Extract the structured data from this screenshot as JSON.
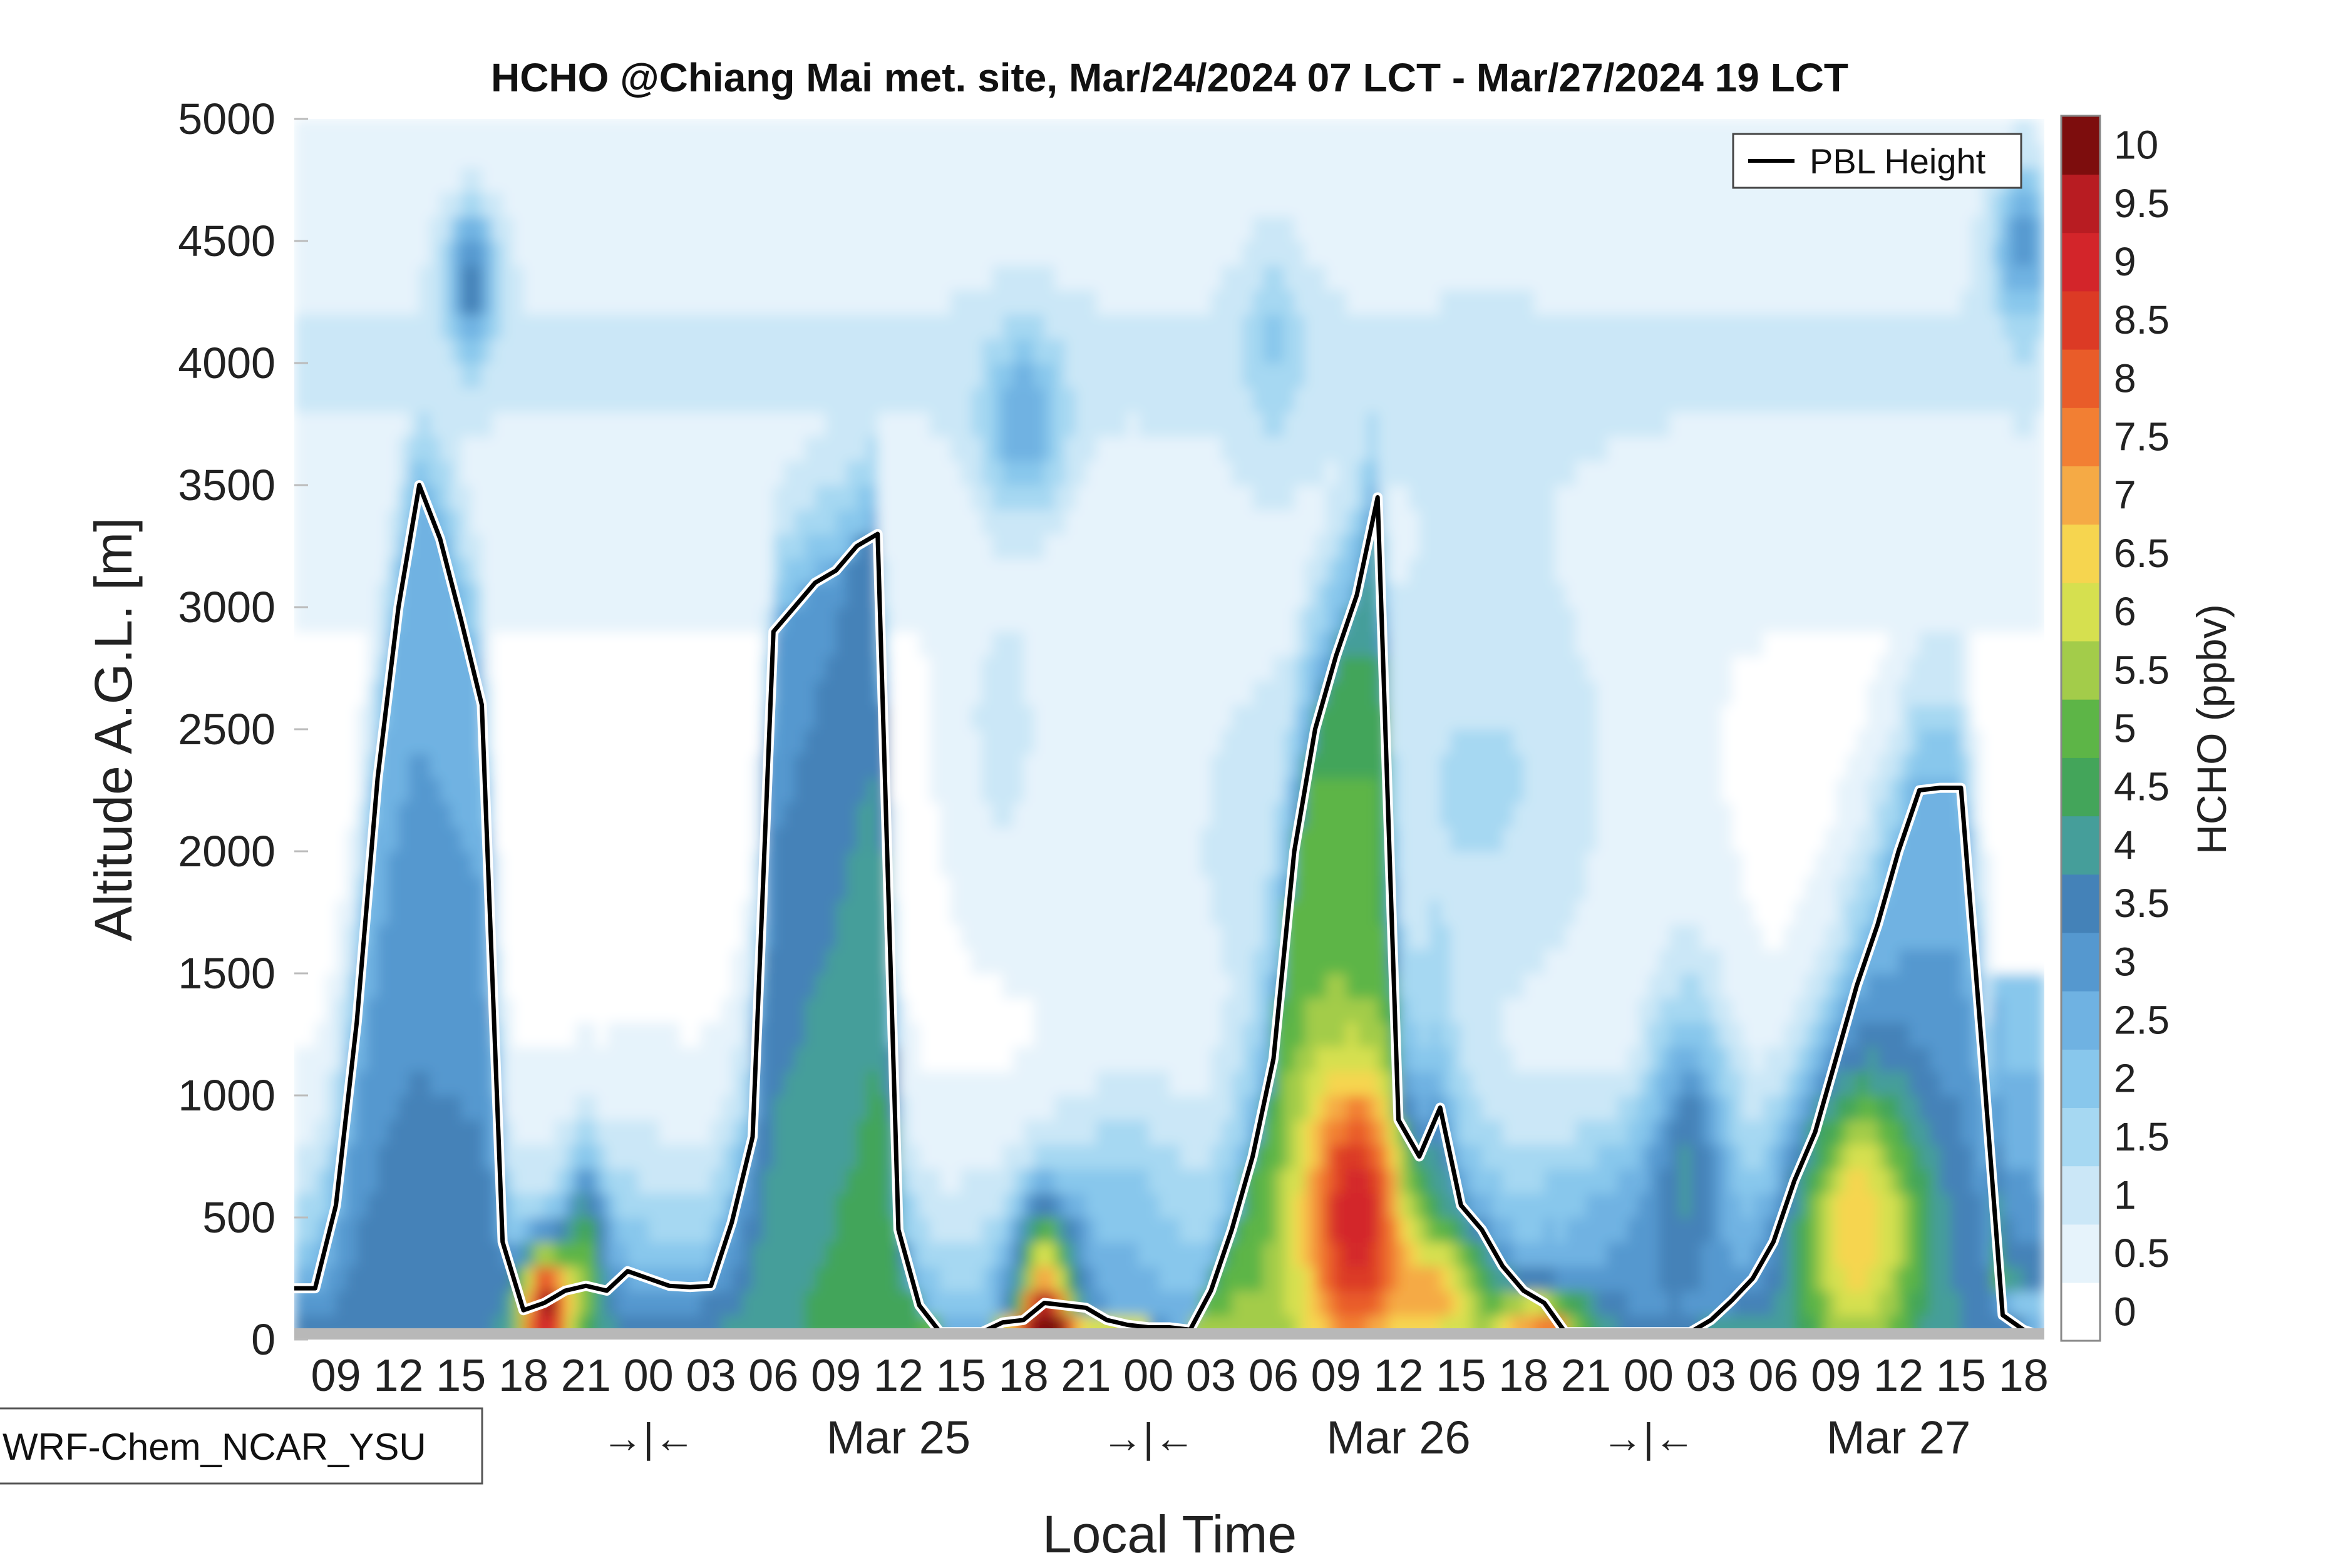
{
  "chart_data": {
    "type": "heatmap",
    "title": "HCHO @Chiang Mai met. site, Mar/24/2024 07 LCT - Mar/27/2024 19 LCT",
    "xlabel": "Local Time",
    "ylabel": "Altitude A.G.L. [m]",
    "colorbar_label": "HCHO (ppbv)",
    "model_label": "WRF-Chem_NCAR_YSU",
    "legend_label": "PBL Height",
    "legend_position": "top-right",
    "xlim_hours": [
      0,
      84
    ],
    "ylim": [
      0,
      5000
    ],
    "y_ticks": [
      0,
      500,
      1000,
      1500,
      2000,
      2500,
      3000,
      3500,
      4000,
      4500,
      5000
    ],
    "x_tick_hours": [
      2,
      5,
      8,
      11,
      14,
      17,
      20,
      23,
      26,
      29,
      32,
      35,
      38,
      41,
      44,
      47,
      50,
      53,
      56,
      59,
      62,
      65,
      68,
      71,
      74,
      77,
      80,
      83
    ],
    "x_tick_labels": [
      "09",
      "12",
      "15",
      "18",
      "21",
      "00",
      "03",
      "06",
      "09",
      "12",
      "15",
      "18",
      "21",
      "00",
      "03",
      "06",
      "09",
      "12",
      "15",
      "18",
      "21",
      "00",
      "03",
      "06",
      "09",
      "12",
      "15",
      "18"
    ],
    "date_labels": [
      {
        "hour": 29,
        "text": "Mar 25"
      },
      {
        "hour": 53,
        "text": "Mar 26"
      },
      {
        "hour": 77,
        "text": "Mar 27"
      }
    ],
    "day_break_labels": [
      {
        "hour": 17,
        "text": "→|←"
      },
      {
        "hour": 41,
        "text": "→|←"
      },
      {
        "hour": 65,
        "text": "→|←"
      }
    ],
    "colorbar_levels": [
      0,
      0.5,
      1,
      1.5,
      2,
      2.5,
      3,
      3.5,
      4,
      4.5,
      5,
      5.5,
      6,
      6.5,
      7,
      7.5,
      8,
      8.5,
      9,
      9.5,
      10
    ],
    "colorbar_tick_labels": [
      "0",
      "0.5",
      "1",
      "1.5",
      "2",
      "2.5",
      "3",
      "3.5",
      "4",
      "4.5",
      "5",
      "5.5",
      "6",
      "6.5",
      "7",
      "7.5",
      "8",
      "8.5",
      "9",
      "9.5",
      "10"
    ],
    "colorbar_colors": [
      "#ffffff",
      "#e6f3fb",
      "#cbe7f7",
      "#a6d8f2",
      "#88c7ec",
      "#6fb2e2",
      "#5598cf",
      "#4482b8",
      "#459e9a",
      "#43a55a",
      "#5db547",
      "#a3cc4a",
      "#d6e04f",
      "#f6d54f",
      "#f5aa45",
      "#f27f33",
      "#e95c29",
      "#dc3a25",
      "#d3252a",
      "#b81c22",
      "#7d0d0d"
    ],
    "pbl_height": {
      "name": "PBL Height",
      "hours": [
        0,
        1,
        2,
        3,
        4,
        5,
        6,
        7,
        8,
        9,
        10,
        11,
        12,
        13,
        14,
        15,
        16,
        17,
        18,
        19,
        20,
        21,
        22,
        23,
        24,
        25,
        26,
        27,
        28,
        29,
        30,
        31,
        32,
        33,
        34,
        35,
        36,
        37,
        38,
        39,
        40,
        41,
        42,
        43,
        44,
        45,
        46,
        47,
        48,
        49,
        50,
        51,
        52,
        53,
        54,
        55,
        56,
        57,
        58,
        59,
        60,
        61,
        62,
        63,
        64,
        65,
        66,
        67,
        68,
        69,
        70,
        71,
        72,
        73,
        74,
        75,
        76,
        77,
        78,
        79,
        80,
        81,
        82,
        83,
        84
      ],
      "values": [
        210,
        210,
        550,
        1300,
        2300,
        3000,
        3500,
        3280,
        2950,
        2600,
        400,
        120,
        150,
        200,
        220,
        200,
        280,
        250,
        220,
        215,
        220,
        480,
        830,
        2900,
        3000,
        3100,
        3150,
        3250,
        3300,
        450,
        140,
        30,
        30,
        30,
        70,
        80,
        150,
        140,
        130,
        80,
        60,
        50,
        50,
        40,
        200,
        450,
        750,
        1150,
        2000,
        2500,
        2800,
        3050,
        3450,
        900,
        750,
        950,
        550,
        450,
        300,
        200,
        150,
        30,
        30,
        30,
        30,
        30,
        30,
        30,
        80,
        160,
        250,
        400,
        650,
        850,
        1150,
        1450,
        1700,
        2000,
        2250,
        2260,
        2260,
        1200,
        100,
        40,
        10
      ]
    }
  }
}
